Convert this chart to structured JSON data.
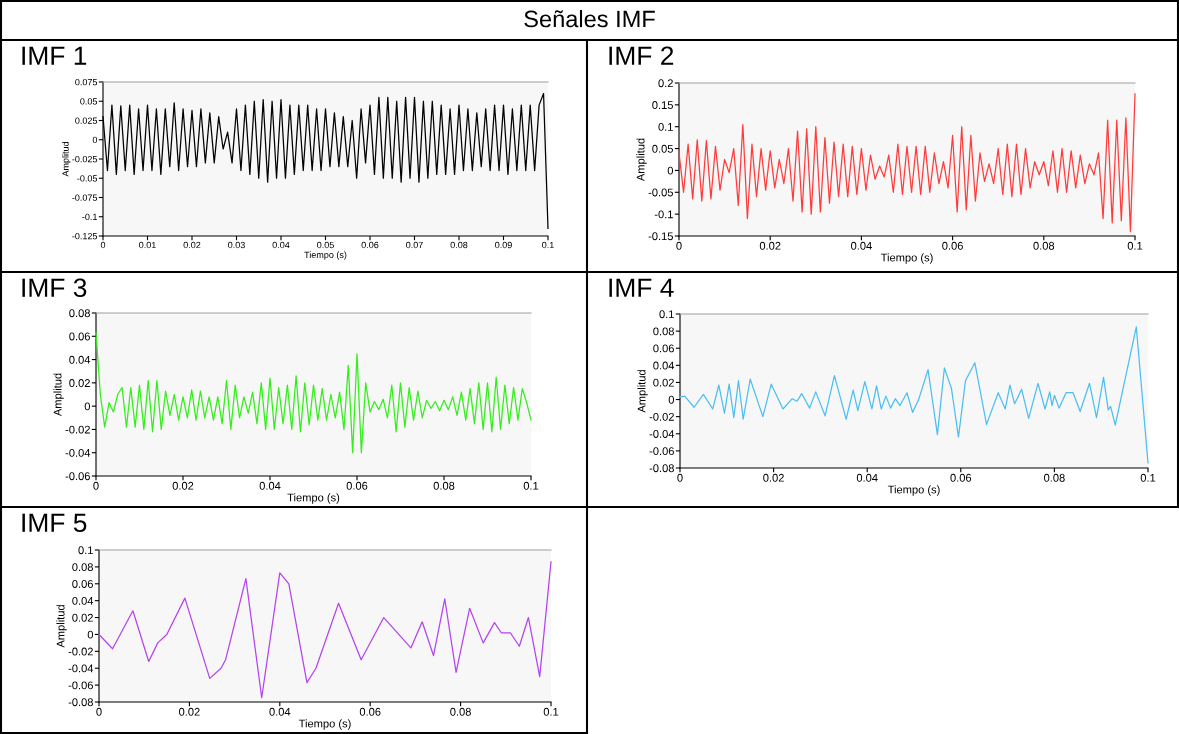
{
  "chart_data": [
    {
      "type": "other",
      "title": "Señales IMF"
    },
    {
      "type": "line",
      "title": "IMF 1",
      "xlabel": "Tiempo (s)",
      "ylabel": "Amplitud",
      "grid": false,
      "xlim": [
        0,
        0.1
      ],
      "xticks": [
        0,
        0.01,
        0.02,
        0.03,
        0.04,
        0.05,
        0.06,
        0.07,
        0.08,
        0.09,
        0.1
      ],
      "ylim": [
        -0.125,
        0.075
      ],
      "yticks": [
        -0.125,
        -0.1,
        -0.075,
        -0.05,
        -0.025,
        0,
        0.025,
        0.05,
        0.075
      ],
      "x": [
        0,
        0.001,
        0.002,
        0.003,
        0.004,
        0.005,
        0.006,
        0.007,
        0.008,
        0.009,
        0.01,
        0.011,
        0.012,
        0.013,
        0.014,
        0.015,
        0.016,
        0.017,
        0.018,
        0.019,
        0.02,
        0.021,
        0.022,
        0.023,
        0.024,
        0.025,
        0.026,
        0.027,
        0.028,
        0.029,
        0.03,
        0.031,
        0.032,
        0.033,
        0.034,
        0.035,
        0.036,
        0.037,
        0.038,
        0.039,
        0.04,
        0.041,
        0.042,
        0.043,
        0.044,
        0.045,
        0.046,
        0.047,
        0.048,
        0.049,
        0.05,
        0.051,
        0.052,
        0.053,
        0.054,
        0.055,
        0.056,
        0.057,
        0.058,
        0.059,
        0.06,
        0.061,
        0.062,
        0.063,
        0.064,
        0.065,
        0.066,
        0.067,
        0.068,
        0.069,
        0.07,
        0.071,
        0.072,
        0.073,
        0.074,
        0.075,
        0.076,
        0.077,
        0.078,
        0.079,
        0.08,
        0.081,
        0.082,
        0.083,
        0.084,
        0.085,
        0.086,
        0.087,
        0.088,
        0.089,
        0.09,
        0.091,
        0.092,
        0.093,
        0.094,
        0.095,
        0.096,
        0.097,
        0.098,
        0.099,
        0.1
      ],
      "series": [
        {
          "color": "#000000",
          "values": [
            0.03,
            -0.04,
            0.045,
            -0.045,
            0.044,
            -0.04,
            0.045,
            -0.045,
            0.04,
            -0.04,
            0.045,
            -0.04,
            0.04,
            -0.045,
            0.04,
            -0.035,
            0.048,
            -0.04,
            0.04,
            -0.035,
            0.038,
            -0.035,
            0.04,
            -0.03,
            0.035,
            -0.03,
            0.03,
            -0.012,
            0.01,
            -0.03,
            0.04,
            -0.04,
            0.045,
            -0.045,
            0.05,
            -0.05,
            0.052,
            -0.055,
            0.05,
            -0.05,
            0.052,
            -0.05,
            0.045,
            -0.045,
            0.045,
            -0.04,
            0.045,
            -0.04,
            0.04,
            -0.04,
            0.04,
            -0.035,
            0.035,
            -0.035,
            0.03,
            -0.035,
            0.025,
            -0.05,
            0.04,
            -0.03,
            0.045,
            -0.045,
            0.055,
            -0.05,
            0.055,
            -0.05,
            0.05,
            -0.055,
            0.055,
            -0.05,
            0.055,
            -0.055,
            0.05,
            -0.05,
            0.05,
            -0.045,
            0.045,
            -0.045,
            0.04,
            -0.045,
            0.045,
            -0.04,
            0.04,
            -0.04,
            0.035,
            -0.035,
            0.04,
            -0.04,
            0.045,
            -0.04,
            0.045,
            -0.045,
            0.04,
            -0.04,
            0.045,
            -0.04,
            0.045,
            -0.04,
            0.045,
            0.06,
            -0.115
          ]
        }
      ]
    },
    {
      "type": "line",
      "title": "IMF 2",
      "xlabel": "Tiempo (s)",
      "ylabel": "Amplitud",
      "grid": false,
      "xlim": [
        0,
        0.1
      ],
      "xticks": [
        0,
        0.02,
        0.04,
        0.06,
        0.08,
        0.1
      ],
      "ylim": [
        -0.15,
        0.2
      ],
      "yticks": [
        -0.15,
        -0.1,
        -0.05,
        0,
        0.05,
        0.1,
        0.15,
        0.2
      ],
      "x": [
        0,
        0.001,
        0.002,
        0.003,
        0.004,
        0.005,
        0.006,
        0.007,
        0.008,
        0.009,
        0.01,
        0.011,
        0.012,
        0.013,
        0.014,
        0.015,
        0.016,
        0.017,
        0.018,
        0.019,
        0.02,
        0.021,
        0.022,
        0.023,
        0.024,
        0.025,
        0.026,
        0.027,
        0.028,
        0.029,
        0.03,
        0.031,
        0.032,
        0.033,
        0.034,
        0.035,
        0.036,
        0.037,
        0.038,
        0.039,
        0.04,
        0.041,
        0.042,
        0.043,
        0.044,
        0.045,
        0.046,
        0.047,
        0.048,
        0.049,
        0.05,
        0.051,
        0.052,
        0.053,
        0.054,
        0.055,
        0.056,
        0.057,
        0.058,
        0.059,
        0.06,
        0.061,
        0.062,
        0.063,
        0.064,
        0.065,
        0.066,
        0.067,
        0.068,
        0.069,
        0.07,
        0.071,
        0.072,
        0.073,
        0.074,
        0.075,
        0.076,
        0.077,
        0.078,
        0.079,
        0.08,
        0.081,
        0.082,
        0.083,
        0.084,
        0.085,
        0.086,
        0.087,
        0.088,
        0.089,
        0.09,
        0.091,
        0.092,
        0.093,
        0.094,
        0.095,
        0.096,
        0.097,
        0.098,
        0.099,
        0.1
      ],
      "series": [
        {
          "color": "#ff3b3b",
          "values": [
            0.04,
            -0.05,
            0.06,
            -0.065,
            0.07,
            -0.07,
            0.068,
            -0.065,
            0.055,
            -0.045,
            0.025,
            -0.005,
            0.05,
            -0.08,
            0.105,
            -0.11,
            0.06,
            -0.06,
            0.05,
            -0.045,
            0.045,
            -0.04,
            0.025,
            -0.03,
            0.05,
            -0.07,
            0.09,
            -0.095,
            0.095,
            -0.1,
            0.1,
            -0.095,
            0.075,
            -0.075,
            0.065,
            -0.06,
            0.06,
            -0.06,
            0.055,
            -0.055,
            0.05,
            -0.045,
            0.035,
            -0.02,
            0.01,
            -0.015,
            0.035,
            -0.05,
            0.06,
            -0.055,
            0.055,
            -0.05,
            0.055,
            -0.055,
            0.055,
            -0.05,
            0.04,
            -0.03,
            0.02,
            -0.04,
            0.08,
            -0.095,
            0.1,
            -0.09,
            0.08,
            -0.07,
            0.04,
            -0.025,
            0.015,
            -0.03,
            0.05,
            -0.055,
            0.06,
            -0.06,
            0.06,
            -0.055,
            0.05,
            -0.04,
            0.02,
            -0.01,
            0.02,
            -0.035,
            0.045,
            -0.05,
            0.05,
            -0.05,
            0.045,
            -0.04,
            0.035,
            -0.03,
            0.015,
            -0.01,
            0.04,
            -0.11,
            0.115,
            -0.12,
            0.115,
            -0.115,
            0.12,
            -0.14,
            0.175
          ]
        }
      ]
    },
    {
      "type": "line",
      "title": "IMF 3",
      "xlabel": "Tiempo (s)",
      "ylabel": "Amplitud",
      "grid": false,
      "xlim": [
        0,
        0.1
      ],
      "xticks": [
        0,
        0.02,
        0.04,
        0.06,
        0.08,
        0.1
      ],
      "ylim": [
        -0.06,
        0.08
      ],
      "yticks": [
        -0.06,
        -0.04,
        -0.02,
        0,
        0.02,
        0.04,
        0.06,
        0.08
      ],
      "x": [
        0,
        0.001,
        0.002,
        0.003,
        0.004,
        0.005,
        0.006,
        0.007,
        0.008,
        0.009,
        0.01,
        0.011,
        0.012,
        0.013,
        0.014,
        0.015,
        0.016,
        0.017,
        0.018,
        0.019,
        0.02,
        0.021,
        0.022,
        0.023,
        0.024,
        0.025,
        0.026,
        0.027,
        0.028,
        0.029,
        0.03,
        0.031,
        0.032,
        0.033,
        0.034,
        0.035,
        0.036,
        0.037,
        0.038,
        0.039,
        0.04,
        0.041,
        0.042,
        0.043,
        0.044,
        0.045,
        0.046,
        0.047,
        0.048,
        0.049,
        0.05,
        0.051,
        0.052,
        0.053,
        0.054,
        0.055,
        0.056,
        0.057,
        0.058,
        0.059,
        0.06,
        0.061,
        0.062,
        0.063,
        0.064,
        0.065,
        0.066,
        0.067,
        0.068,
        0.069,
        0.07,
        0.071,
        0.072,
        0.073,
        0.074,
        0.075,
        0.076,
        0.077,
        0.078,
        0.079,
        0.08,
        0.081,
        0.082,
        0.083,
        0.084,
        0.085,
        0.086,
        0.087,
        0.088,
        0.089,
        0.09,
        0.091,
        0.092,
        0.093,
        0.094,
        0.095,
        0.096,
        0.097,
        0.098,
        0.099,
        0.1
      ],
      "series": [
        {
          "color": "#33ee1a",
          "values": [
            0.063,
            0.01,
            -0.018,
            0.003,
            -0.005,
            0.01,
            0.016,
            -0.018,
            0.016,
            -0.018,
            0.018,
            -0.02,
            0.022,
            -0.022,
            0.022,
            -0.02,
            0.013,
            -0.008,
            0.01,
            -0.012,
            0.008,
            -0.01,
            0.014,
            -0.012,
            0.013,
            -0.01,
            0.008,
            -0.012,
            0.008,
            -0.015,
            0.022,
            -0.02,
            0.018,
            -0.01,
            0.008,
            -0.006,
            0.012,
            -0.015,
            0.02,
            -0.02,
            0.024,
            -0.02,
            0.016,
            -0.015,
            0.018,
            -0.02,
            0.026,
            -0.022,
            0.02,
            -0.016,
            0.018,
            -0.012,
            0.015,
            -0.012,
            0.01,
            -0.01,
            0.012,
            -0.02,
            0.035,
            -0.04,
            0.045,
            -0.04,
            0.02,
            -0.005,
            0.004,
            -0.003,
            0.006,
            -0.01,
            0.018,
            -0.022,
            0.02,
            -0.018,
            0.016,
            -0.012,
            0.013,
            -0.01,
            0.005,
            -0.002,
            0.004,
            -0.004,
            0.005,
            -0.003,
            0.008,
            -0.008,
            0.012,
            -0.012,
            0.015,
            -0.015,
            0.02,
            -0.02,
            0.02,
            -0.022,
            0.025,
            -0.02,
            0.018,
            -0.015,
            0.016,
            -0.012,
            0.015,
            0.003,
            -0.012
          ]
        }
      ]
    },
    {
      "type": "line",
      "title": "IMF 4",
      "xlabel": "Tiempo (s)",
      "ylabel": "Amplitud",
      "grid": false,
      "xlim": [
        0,
        0.1
      ],
      "xticks": [
        0,
        0.02,
        0.04,
        0.06,
        0.08,
        0.1
      ],
      "ylim": [
        -0.08,
        0.1
      ],
      "yticks": [
        -0.08,
        -0.06,
        -0.04,
        -0.02,
        0,
        0.02,
        0.04,
        0.06,
        0.08,
        0.1
      ],
      "x": [
        0,
        0.001,
        0.003,
        0.005,
        0.007,
        0.0083,
        0.0095,
        0.0105,
        0.0115,
        0.0125,
        0.0135,
        0.015,
        0.0177,
        0.0195,
        0.022,
        0.024,
        0.025,
        0.026,
        0.0277,
        0.029,
        0.031,
        0.033,
        0.0355,
        0.037,
        0.038,
        0.0395,
        0.041,
        0.042,
        0.043,
        0.044,
        0.045,
        0.046,
        0.047,
        0.0485,
        0.0497,
        0.051,
        0.053,
        0.055,
        0.0565,
        0.058,
        0.0595,
        0.061,
        0.063,
        0.0655,
        0.068,
        0.0695,
        0.0705,
        0.0715,
        0.073,
        0.0745,
        0.0765,
        0.078,
        0.079,
        0.0795,
        0.08,
        0.081,
        0.0825,
        0.084,
        0.0855,
        0.0875,
        0.089,
        0.0905,
        0.0915,
        0.092,
        0.093,
        0.0975,
        0.1
      ],
      "series": [
        {
          "color": "#4cbff0",
          "values": [
            0.003,
            0.004,
            -0.009,
            0.006,
            -0.011,
            0.017,
            -0.016,
            0.018,
            -0.021,
            0.022,
            -0.023,
            0.024,
            -0.02,
            0.018,
            -0.011,
            0.001,
            -0.002,
            0.007,
            -0.01,
            0.009,
            -0.019,
            0.028,
            -0.023,
            0.011,
            -0.013,
            0.021,
            -0.011,
            0.016,
            -0.011,
            0.004,
            -0.01,
            0.001,
            -0.007,
            0.008,
            -0.015,
            0.0,
            0.035,
            -0.041,
            0.037,
            0.013,
            -0.044,
            0.022,
            0.043,
            -0.029,
            0.008,
            -0.011,
            0.017,
            -0.005,
            0.012,
            -0.022,
            0.019,
            -0.011,
            0.009,
            -0.007,
            0.005,
            -0.01,
            0.008,
            0.008,
            -0.014,
            0.019,
            -0.021,
            0.026,
            -0.012,
            -0.008,
            -0.03,
            0.085,
            -0.074
          ]
        }
      ]
    },
    {
      "type": "line",
      "title": "IMF 5",
      "xlabel": "Tiempo (s)",
      "ylabel": "Amplitud",
      "grid": false,
      "xlim": [
        0,
        0.1
      ],
      "xticks": [
        0,
        0.02,
        0.04,
        0.06,
        0.08,
        0.1
      ],
      "ylim": [
        -0.08,
        0.1
      ],
      "yticks": [
        -0.08,
        -0.06,
        -0.04,
        -0.02,
        0,
        0.02,
        0.04,
        0.06,
        0.08,
        0.1
      ],
      "x": [
        0,
        0.003,
        0.0075,
        0.011,
        0.013,
        0.015,
        0.019,
        0.0245,
        0.027,
        0.028,
        0.0325,
        0.036,
        0.04,
        0.042,
        0.046,
        0.048,
        0.053,
        0.058,
        0.063,
        0.069,
        0.0715,
        0.074,
        0.0765,
        0.079,
        0.082,
        0.085,
        0.0875,
        0.089,
        0.091,
        0.093,
        0.095,
        0.0975,
        0.1
      ],
      "series": [
        {
          "color": "#b443f0",
          "values": [
            0,
            -0.017,
            0.028,
            -0.032,
            -0.01,
            0.0,
            0.043,
            -0.052,
            -0.04,
            -0.03,
            0.066,
            -0.075,
            0.073,
            0.06,
            -0.057,
            -0.04,
            0.037,
            -0.03,
            0.02,
            -0.016,
            0.015,
            -0.025,
            0.042,
            -0.045,
            0.031,
            -0.01,
            0.014,
            0.002,
            0.002,
            -0.014,
            0.02,
            -0.05,
            0.086
          ]
        }
      ]
    }
  ]
}
